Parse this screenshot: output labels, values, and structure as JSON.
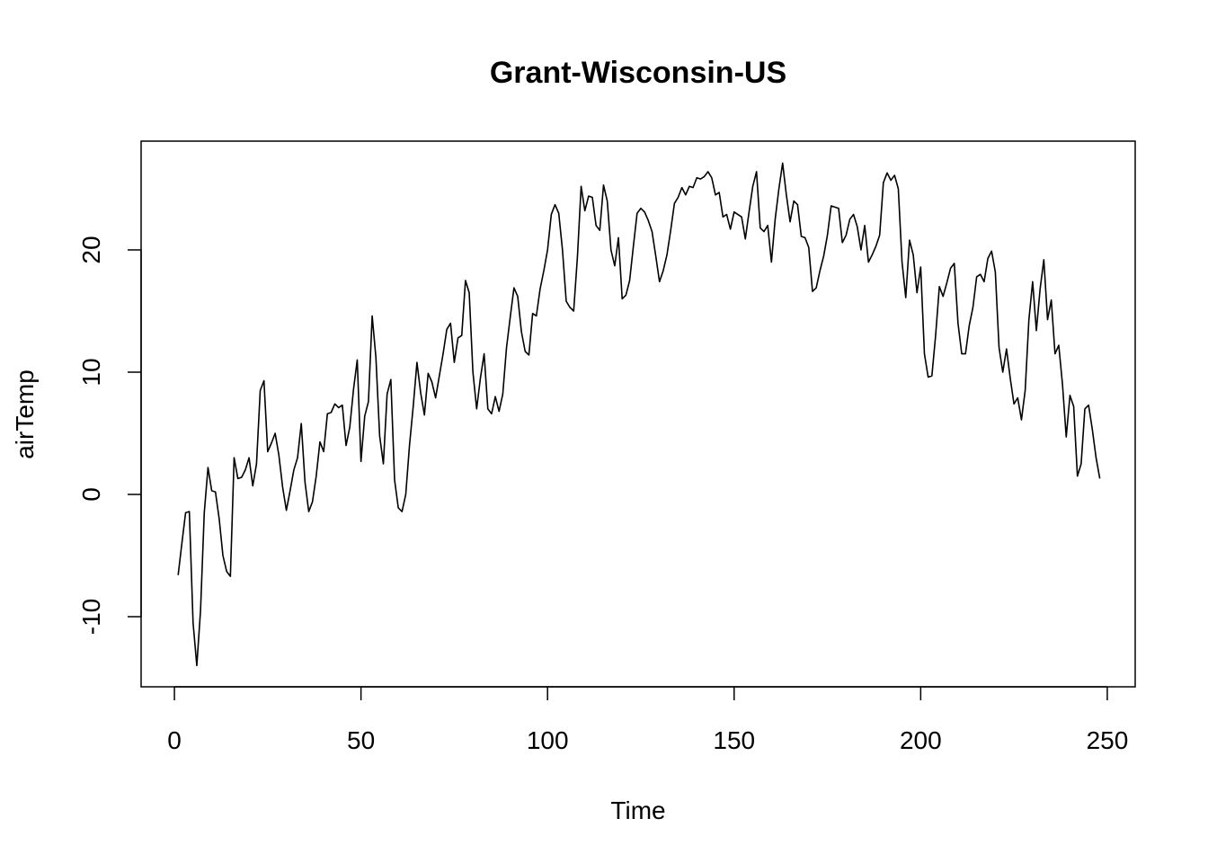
{
  "chart_data": {
    "type": "line",
    "title": "Grant-Wisconsin-US",
    "xlabel": "Time",
    "ylabel": "airTemp",
    "xlim": [
      1,
      248
    ],
    "ylim": [
      -15,
      27
    ],
    "x_ticks": [
      0,
      50,
      100,
      150,
      200,
      250
    ],
    "y_ticks": [
      -10,
      0,
      10,
      20
    ],
    "grid": false,
    "series": [
      {
        "values": [
          -6.6,
          -4.0,
          -1.5,
          -1.4,
          -10.5,
          -14.0,
          -9.5,
          -1.5,
          2.2,
          0.3,
          0.2,
          -2.0,
          -5.0,
          -6.3,
          -6.7,
          3.0,
          1.3,
          1.4,
          2.0,
          3.0,
          0.7,
          2.5,
          8.5,
          9.3,
          3.5,
          4.2,
          5.0,
          3.2,
          0.6,
          -1.3,
          0.3,
          2.0,
          3.0,
          5.8,
          1.0,
          -1.4,
          -0.6,
          1.5,
          4.3,
          3.5,
          6.6,
          6.7,
          7.4,
          7.1,
          7.3,
          4.0,
          5.5,
          8.6,
          11.0,
          2.7,
          6.4,
          7.6,
          14.6,
          11.2,
          4.8,
          2.5,
          8.2,
          9.4,
          1.2,
          -1.1,
          -1.4,
          0.0,
          4.0,
          7.2,
          10.8,
          8.3,
          6.5,
          9.9,
          9.2,
          7.9,
          9.7,
          11.5,
          13.5,
          14.0,
          10.8,
          12.8,
          13.0,
          17.5,
          16.5,
          10.0,
          7.0,
          9.5,
          11.5,
          7.0,
          6.6,
          8.0,
          6.8,
          8.2,
          12.0,
          14.5,
          16.9,
          16.2,
          13.3,
          11.7,
          11.4,
          14.8,
          14.6,
          16.8,
          18.3,
          20.0,
          22.9,
          23.7,
          23.0,
          20.0,
          15.8,
          15.3,
          15.0,
          19.4,
          25.2,
          23.2,
          24.4,
          24.3,
          22.0,
          21.6,
          25.3,
          24.0,
          20.0,
          18.7,
          21.0,
          16.0,
          16.3,
          17.5,
          20.3,
          23.0,
          23.4,
          23.1,
          22.4,
          21.5,
          19.5,
          17.4,
          18.3,
          19.6,
          21.6,
          23.8,
          24.3,
          25.1,
          24.5,
          25.2,
          25.1,
          25.9,
          25.8,
          26.0,
          26.4,
          25.9,
          24.5,
          24.7,
          22.7,
          22.9,
          21.7,
          23.1,
          22.9,
          22.7,
          20.9,
          23.1,
          25.2,
          26.4,
          21.8,
          21.5,
          22.0,
          19.0,
          22.5,
          25.0,
          27.1,
          24.5,
          22.3,
          24.0,
          23.7,
          21.1,
          21.0,
          20.2,
          16.6,
          16.9,
          18.3,
          19.5,
          21.2,
          23.6,
          23.5,
          23.4,
          20.6,
          21.2,
          22.5,
          22.9,
          21.9,
          20.0,
          22.0,
          19.0,
          19.6,
          20.3,
          21.2,
          25.5,
          26.3,
          25.7,
          26.1,
          25.0,
          19.0,
          16.1,
          20.8,
          19.6,
          16.5,
          18.6,
          11.5,
          9.6,
          9.7,
          13.0,
          17.0,
          16.2,
          17.3,
          18.5,
          18.9,
          14.0,
          11.5,
          11.5,
          13.8,
          15.3,
          17.8,
          18.0,
          17.4,
          19.3,
          19.9,
          18.2,
          12.0,
          10.0,
          11.9,
          9.5,
          7.4,
          7.9,
          6.1,
          8.5,
          14.3,
          17.4,
          13.4,
          16.8,
          19.2,
          14.3,
          15.9,
          11.5,
          12.2,
          9.0,
          4.7,
          8.1,
          7.2,
          1.5,
          2.5,
          7.0,
          7.3,
          5.3,
          3.0,
          1.3
        ]
      }
    ]
  }
}
